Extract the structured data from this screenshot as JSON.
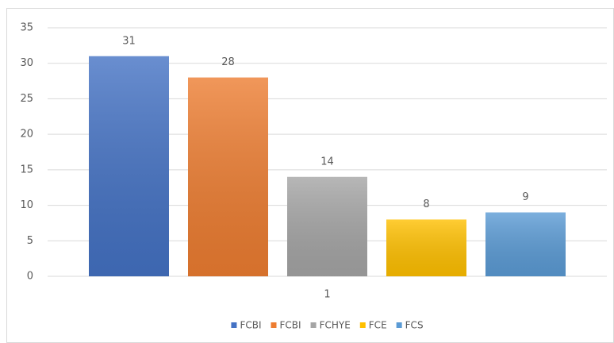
{
  "chart_data": {
    "type": "bar",
    "categories": [
      "1"
    ],
    "series": [
      {
        "name": "FCBI",
        "color": "#4472c4",
        "values": [
          31
        ]
      },
      {
        "name": "FCBI",
        "color": "#ed7d31",
        "values": [
          28
        ]
      },
      {
        "name": "FCHYE",
        "color": "#a5a5a5",
        "values": [
          14
        ]
      },
      {
        "name": "FCE",
        "color": "#ffc000",
        "values": [
          8
        ]
      },
      {
        "name": "FCS",
        "color": "#5b9bd5",
        "values": [
          9
        ]
      }
    ],
    "ylim": [
      0,
      35
    ],
    "yticks": [
      0,
      5,
      10,
      15,
      20,
      25,
      30,
      35
    ],
    "grid": true,
    "legend": "bottom",
    "data_labels": true
  }
}
